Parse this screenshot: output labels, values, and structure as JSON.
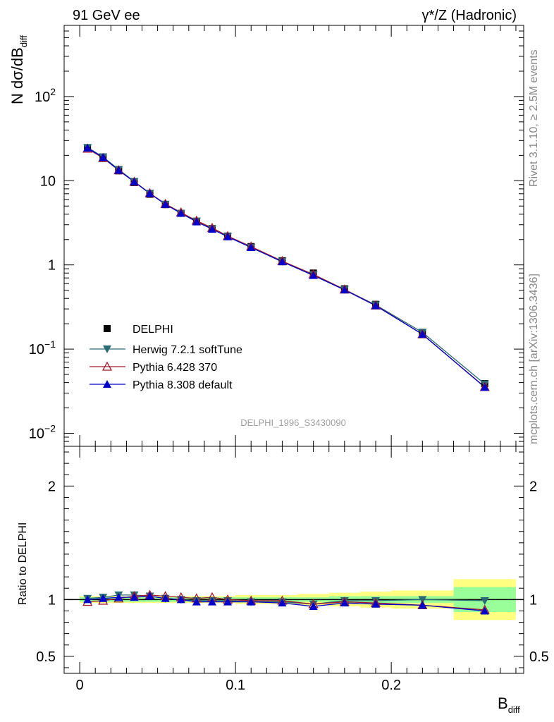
{
  "header": {
    "left": "91 GeV ee",
    "right": "γ*/Z (Hadronic)"
  },
  "side_text": {
    "rivet": "Rivet 3.1.10, ≥ 2.5M events",
    "mcplots": "mcplots.cern.ch [arXiv:1306.3436]"
  },
  "watermark": "DELPHI_1996_S3430090",
  "colors": {
    "data": "#000000",
    "herwig": "#2b6b73",
    "pythia6": "#a01c2c",
    "pythia8": "#0000cc",
    "band_inner": "#99ff99",
    "band_outer": "#ffff80"
  },
  "chart_data": [
    {
      "type": "line",
      "panel": "main",
      "log_y": true,
      "ylabel": "N dσ/dB",
      "ylabel_sub": "diff",
      "ylim": [
        0.007,
        700
      ],
      "xlim": [
        -0.01,
        0.285
      ],
      "y_tick_labels": [
        "10^-2",
        "10^-1",
        "1",
        "10",
        "10^2"
      ],
      "legend_position": "lower-left",
      "x": [
        0.005,
        0.015,
        0.025,
        0.035,
        0.045,
        0.055,
        0.065,
        0.075,
        0.085,
        0.095,
        0.11,
        0.13,
        0.15,
        0.17,
        0.19,
        0.22,
        0.26
      ],
      "series": [
        {
          "name": "DELPHI",
          "style": "data",
          "values": [
            24.5,
            18.8,
            13.1,
            9.5,
            6.9,
            5.2,
            4.1,
            3.3,
            2.7,
            2.2,
            1.65,
            1.12,
            0.8,
            0.52,
            0.34,
            0.158,
            0.039
          ]
        },
        {
          "name": "Herwig 7.2.1 softTune",
          "style": "herwig",
          "values": [
            24.8,
            19.2,
            13.6,
            9.8,
            7.1,
            5.25,
            4.1,
            3.3,
            2.68,
            2.18,
            1.62,
            1.1,
            0.77,
            0.51,
            0.335,
            0.158,
            0.0385
          ]
        },
        {
          "name": "Pythia 6.428 370",
          "style": "pythia6",
          "values": [
            24.0,
            18.6,
            13.3,
            9.7,
            7.1,
            5.3,
            4.2,
            3.35,
            2.75,
            2.2,
            1.65,
            1.11,
            0.77,
            0.51,
            0.33,
            0.15,
            0.0355
          ]
        },
        {
          "name": "Pythia 8.308 default",
          "style": "pythia8",
          "values": [
            24.5,
            18.9,
            13.3,
            9.7,
            7.05,
            5.25,
            4.1,
            3.25,
            2.66,
            2.16,
            1.61,
            1.09,
            0.75,
            0.505,
            0.328,
            0.15,
            0.0352
          ]
        }
      ]
    },
    {
      "type": "line",
      "panel": "ratio",
      "ylabel": "Ratio to DELPHI",
      "xlabel": "B",
      "xlabel_sub": "diff",
      "ylim": [
        0.35,
        2.35
      ],
      "xlim": [
        -0.01,
        0.285
      ],
      "y_ticks": [
        0.5,
        1,
        2
      ],
      "y_tick_labels": [
        "0.5",
        "1",
        "2"
      ],
      "x_ticks": [
        0,
        0.1,
        0.2
      ],
      "x_tick_labels": [
        "0",
        "0.1",
        "0.2"
      ],
      "x": [
        0.005,
        0.015,
        0.025,
        0.035,
        0.045,
        0.055,
        0.065,
        0.075,
        0.085,
        0.095,
        0.11,
        0.13,
        0.15,
        0.17,
        0.19,
        0.22,
        0.26
      ],
      "bands": {
        "edges": [
          0,
          0.01,
          0.02,
          0.03,
          0.04,
          0.05,
          0.06,
          0.07,
          0.08,
          0.09,
          0.1,
          0.12,
          0.14,
          0.16,
          0.18,
          0.2,
          0.24,
          0.28
        ],
        "inner": [
          0.02,
          0.02,
          0.02,
          0.02,
          0.02,
          0.02,
          0.02,
          0.02,
          0.02,
          0.02,
          0.02,
          0.02,
          0.02,
          0.03,
          0.03,
          0.03,
          0.11
        ],
        "outer": [
          0.03,
          0.03,
          0.03,
          0.03,
          0.03,
          0.03,
          0.03,
          0.03,
          0.03,
          0.03,
          0.04,
          0.04,
          0.05,
          0.06,
          0.07,
          0.08,
          0.18
        ]
      },
      "series": [
        {
          "name": "Herwig 7.2.1 softTune",
          "style": "herwig",
          "values": [
            1.01,
            1.02,
            1.04,
            1.04,
            1.03,
            1.01,
            1.0,
            0.99,
            0.99,
            0.99,
            0.98,
            0.98,
            0.96,
            0.99,
            0.99,
            1.0,
            0.99
          ]
        },
        {
          "name": "Pythia 6.428 370",
          "style": "pythia6",
          "values": [
            0.98,
            0.99,
            1.01,
            1.03,
            1.04,
            1.03,
            1.02,
            1.01,
            1.02,
            1.0,
            0.99,
            0.99,
            0.96,
            0.98,
            0.97,
            0.95,
            0.91
          ]
        },
        {
          "name": "Pythia 8.308 default",
          "style": "pythia8",
          "values": [
            1.0,
            1.01,
            1.02,
            1.02,
            1.03,
            1.01,
            1.0,
            0.98,
            0.98,
            0.98,
            0.98,
            0.97,
            0.94,
            0.97,
            0.96,
            0.95,
            0.9
          ]
        }
      ]
    }
  ]
}
